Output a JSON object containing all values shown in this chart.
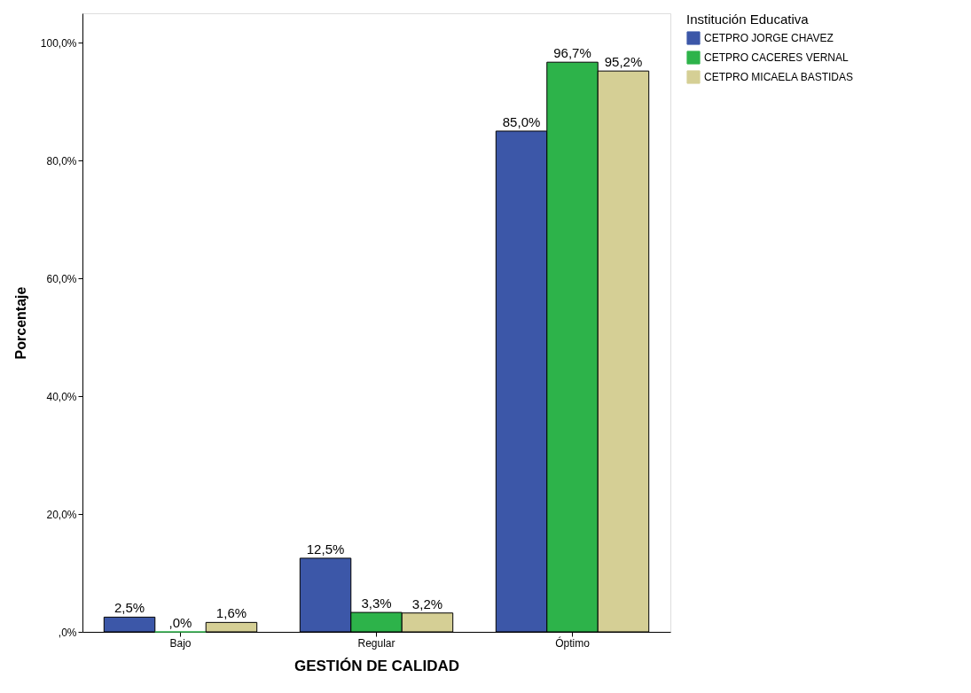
{
  "chart_data": {
    "type": "bar",
    "xlabel": "GESTIÓN DE CALIDAD",
    "ylabel": "Porcentaje",
    "legend_title": "Institución Educativa",
    "categories": [
      "Bajo",
      "Regular",
      "Óptimo"
    ],
    "series": [
      {
        "name": "CETPRO JORGE CHAVEZ",
        "color": "#3c57a8",
        "values": [
          2.5,
          12.5,
          85.0
        ],
        "value_labels": [
          "2,5%",
          "12,5%",
          "85,0%"
        ]
      },
      {
        "name": "CETPRO CACERES VERNAL",
        "color": "#2db34a",
        "values": [
          0.0,
          3.3,
          96.7
        ],
        "value_labels": [
          ",0%",
          "3,3%",
          "96,7%"
        ]
      },
      {
        "name": "CETPRO MICAELA BASTIDAS",
        "color": "#d5cf95",
        "values": [
          1.6,
          3.2,
          95.2
        ],
        "value_labels": [
          "1,6%",
          "3,2%",
          "95,2%"
        ]
      }
    ],
    "ylim": [
      0,
      105
    ],
    "yticks": [
      {
        "value": 0,
        "label": ",0%"
      },
      {
        "value": 20,
        "label": "20,0%"
      },
      {
        "value": 40,
        "label": "40,0%"
      },
      {
        "value": 60,
        "label": "60,0%"
      },
      {
        "value": 80,
        "label": "80,0%"
      },
      {
        "value": 100,
        "label": "100,0%"
      }
    ],
    "grid": false,
    "legend": "top right"
  }
}
